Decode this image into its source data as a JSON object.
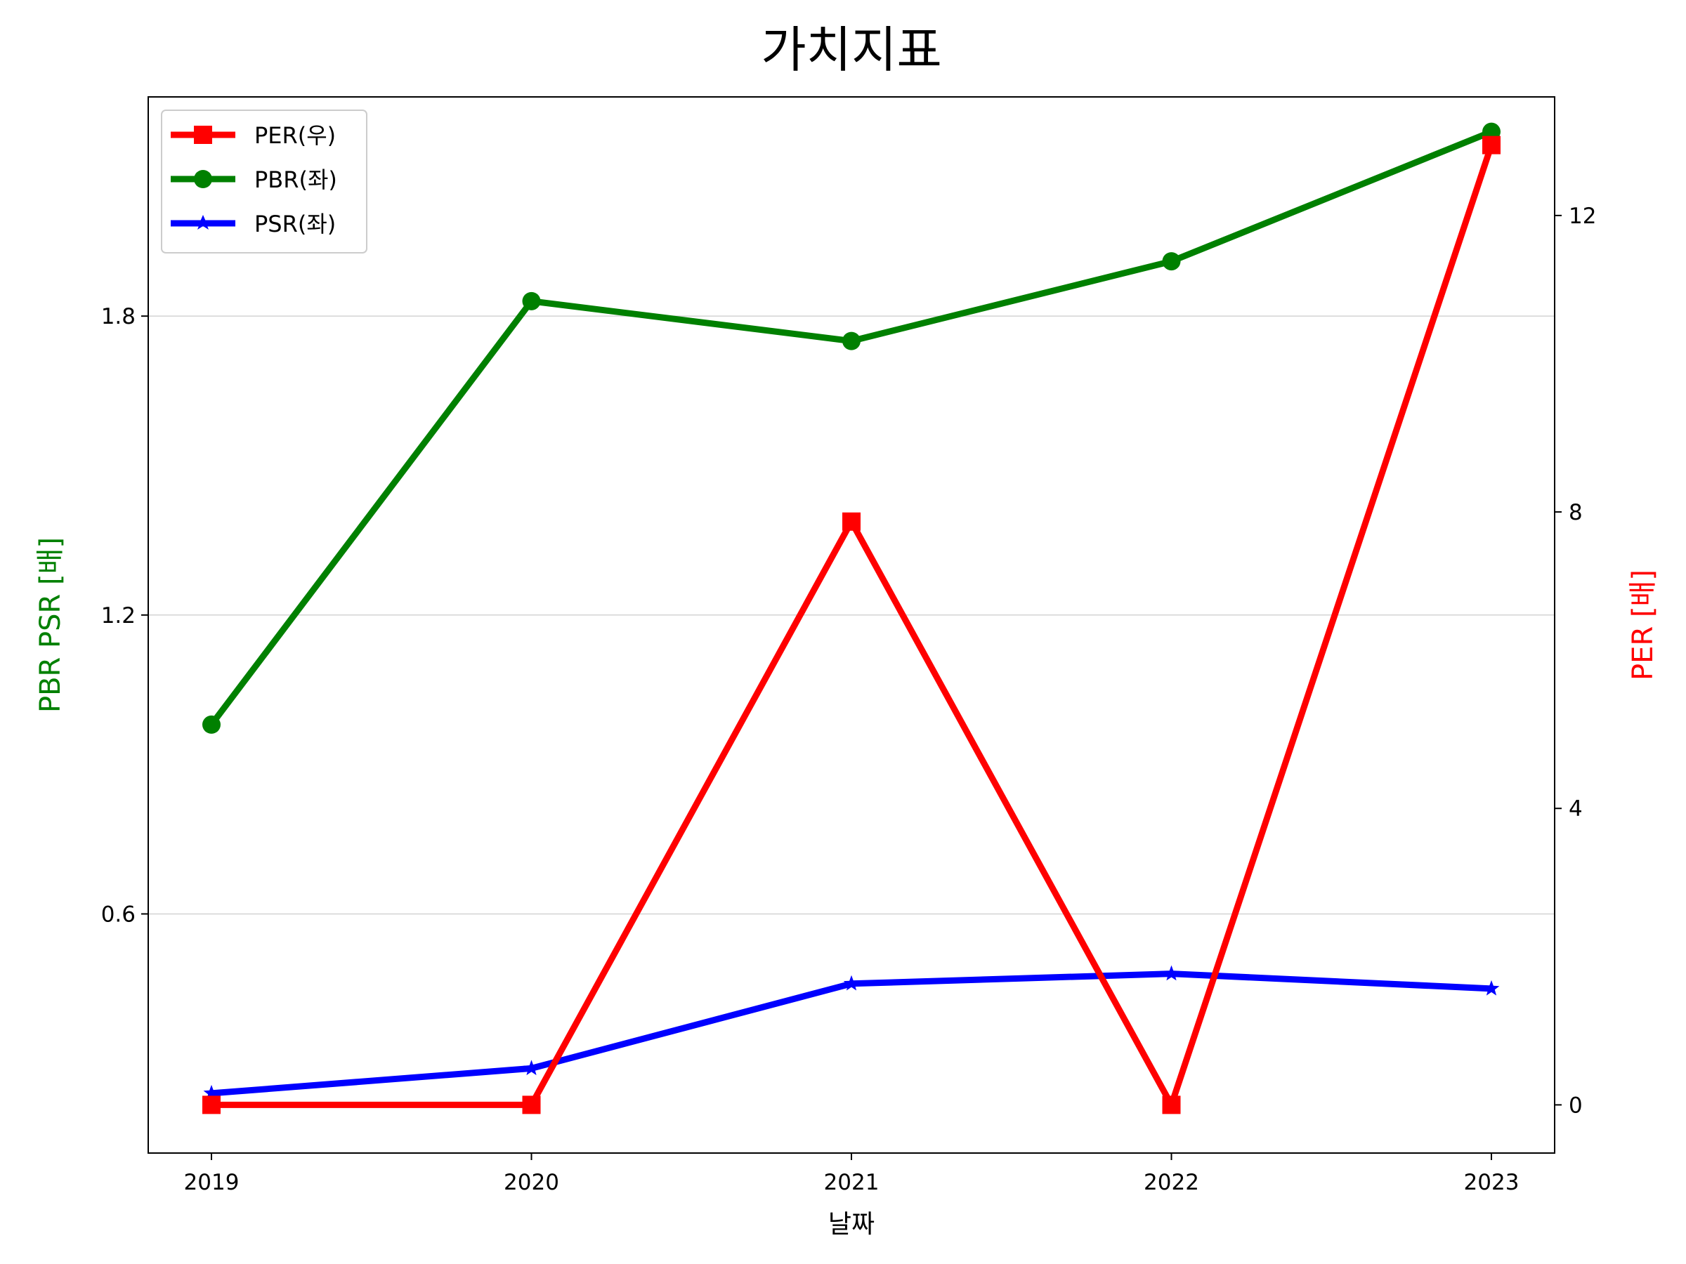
{
  "chart_data": {
    "type": "line",
    "title": "가치지표",
    "xlabel": "날짜",
    "ylabel_left": "PBR PSR [배]",
    "ylabel_right": "PER [배]",
    "categories": [
      "2019",
      "2020",
      "2021",
      "2022",
      "2023"
    ],
    "left_axis": {
      "ylim": [
        0.12,
        2.24
      ],
      "ticks": [
        0.6,
        1.2,
        1.8
      ],
      "tick_labels": [
        "0.6",
        "1.2",
        "1.8"
      ],
      "grid": true
    },
    "right_axis": {
      "ylim": [
        -0.65,
        13.6
      ],
      "ticks": [
        0,
        4,
        8,
        12
      ],
      "tick_labels": [
        "0",
        "4",
        "8",
        "12"
      ],
      "grid": false
    },
    "series": [
      {
        "name": "PER(우)",
        "axis": "right",
        "color": "#ff0000",
        "marker": "square",
        "values": [
          0.0,
          0.0,
          7.87,
          0.0,
          12.95
        ]
      },
      {
        "name": "PBR(좌)",
        "axis": "left",
        "color": "#008000",
        "marker": "circle",
        "values": [
          0.98,
          1.83,
          1.75,
          1.91,
          2.17
        ]
      },
      {
        "name": "PSR(좌)",
        "axis": "left",
        "color": "#0000ff",
        "marker": "star",
        "values": [
          0.24,
          0.29,
          0.46,
          0.48,
          0.45
        ]
      }
    ],
    "legend": {
      "position": "top-left"
    }
  }
}
